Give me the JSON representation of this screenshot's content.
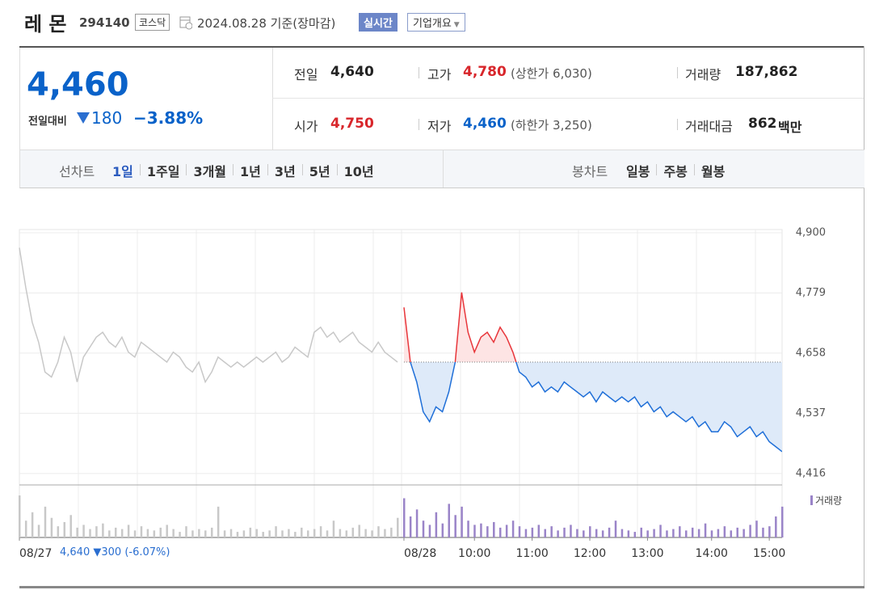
{
  "header": {
    "name": "레 몬",
    "code": "294140",
    "market": "코스닥",
    "date": "2024.08.28",
    "basis": "기준(장마감)",
    "realtime": "실시간",
    "company": "기업개요"
  },
  "price": {
    "current": "4,460",
    "change_label": "전일대비",
    "change": "180",
    "change_rate": "−3.88%"
  },
  "stats": [
    {
      "label": "전일",
      "value": "4,640"
    },
    {
      "label": "고가",
      "value": "4,780",
      "note": "(상한가 6,030)"
    },
    {
      "label": "거래량",
      "value": "187,862"
    },
    {
      "label": "시가",
      "value": "4,750"
    },
    {
      "label": "저가",
      "value": "4,460",
      "note": "(하한가 3,250)"
    },
    {
      "label": "거래대금",
      "value": "862",
      "unit": "백만"
    }
  ],
  "tabs": {
    "line_label": "선차트",
    "line": [
      "1일",
      "1주일",
      "3개월",
      "1년",
      "3년",
      "5년",
      "10년"
    ],
    "candle_label": "봉차트",
    "candle": [
      "일봉",
      "주봉",
      "월봉"
    ]
  },
  "chart_data": {
    "type": "line",
    "series": [
      {
        "color": "#c8c8c8",
        "values": [
          4870,
          4790,
          4720,
          4680,
          4620,
          4610,
          4640,
          4690,
          4660,
          4600,
          4650,
          4670,
          4690,
          4700,
          4680,
          4670,
          4690,
          4660,
          4650,
          4680,
          4670,
          4660,
          4650,
          4640,
          4660,
          4650,
          4630,
          4620,
          4640,
          4600,
          4620,
          4650,
          4640,
          4630,
          4640,
          4630,
          4640,
          4650,
          4640,
          4650,
          4660,
          4640,
          4650,
          4670,
          4660,
          4650,
          4700,
          4710,
          4690,
          4700,
          4680,
          4690,
          4700,
          4680,
          4670,
          4660,
          4680,
          4660,
          4650,
          4640,
          null,
          null,
          null,
          null,
          null,
          null,
          null,
          null,
          null,
          null,
          null,
          null,
          null,
          null,
          null,
          null,
          null,
          null,
          null,
          null,
          null,
          null,
          null,
          null,
          null,
          null,
          null,
          null,
          null,
          null,
          null,
          null,
          null,
          null,
          null,
          null,
          null,
          null,
          null,
          null,
          null,
          null,
          null,
          null,
          null,
          null,
          null,
          null,
          null,
          null,
          null,
          null,
          null,
          null,
          null,
          null,
          null,
          null,
          null,
          null
        ]
      },
      {
        "color": "#1f6fd8",
        "up_color": "#e8363b",
        "values": [
          null,
          null,
          null,
          null,
          null,
          null,
          null,
          null,
          null,
          null,
          null,
          null,
          null,
          null,
          null,
          null,
          null,
          null,
          null,
          null,
          null,
          null,
          null,
          null,
          null,
          null,
          null,
          null,
          null,
          null,
          null,
          null,
          null,
          null,
          null,
          null,
          null,
          null,
          null,
          null,
          null,
          null,
          null,
          null,
          null,
          null,
          null,
          null,
          null,
          null,
          null,
          null,
          null,
          null,
          null,
          null,
          null,
          null,
          null,
          null,
          4750,
          4640,
          4600,
          4540,
          4520,
          4550,
          4540,
          4580,
          4640,
          4780,
          4700,
          4660,
          4690,
          4700,
          4680,
          4710,
          4690,
          4660,
          4620,
          4610,
          4590,
          4600,
          4580,
          4590,
          4580,
          4600,
          4590,
          4580,
          4570,
          4580,
          4560,
          4580,
          4570,
          4560,
          4570,
          4560,
          4570,
          4550,
          4560,
          4540,
          4550,
          4530,
          4540,
          4530,
          4520,
          4530,
          4510,
          4520,
          4500,
          4500,
          4520,
          4510,
          4490,
          4500,
          4510,
          4490,
          4500,
          4480,
          4470,
          4460
        ]
      }
    ],
    "reference_line": 4640,
    "volume": {
      "name": "거래량",
      "color": "#9a84c8",
      "values": [
        30,
        12,
        18,
        9,
        22,
        14,
        8,
        11,
        16,
        7,
        9,
        6,
        8,
        10,
        5,
        7,
        6,
        9,
        5,
        8,
        6,
        5,
        7,
        9,
        6,
        4,
        8,
        5,
        6,
        5,
        7,
        22,
        5,
        6,
        4,
        5,
        7,
        6,
        4,
        5,
        8,
        5,
        6,
        4,
        7,
        5,
        6,
        8,
        5,
        12,
        6,
        5,
        7,
        9,
        6,
        5,
        8,
        6,
        7,
        14,
        28,
        15,
        20,
        12,
        9,
        18,
        10,
        24,
        16,
        22,
        12,
        9,
        10,
        8,
        11,
        7,
        9,
        12,
        8,
        6,
        7,
        9,
        6,
        8,
        5,
        7,
        9,
        6,
        5,
        8,
        6,
        5,
        7,
        12,
        6,
        5,
        4,
        7,
        5,
        6,
        9,
        5,
        6,
        8,
        5,
        7,
        6,
        10,
        5,
        6,
        8,
        5,
        7,
        6,
        9,
        12,
        7,
        8,
        15,
        22
      ]
    },
    "xlim": [
      0,
      119
    ],
    "xticks": [
      {
        "value": 0,
        "label": "08/27"
      },
      {
        "value": 60,
        "label": "08/28"
      },
      {
        "value": 71,
        "label": "10:00"
      },
      {
        "value": 80,
        "label": "11:00"
      },
      {
        "value": 89,
        "label": "12:00"
      },
      {
        "value": 98,
        "label": "13:00"
      },
      {
        "value": 108,
        "label": "14:00"
      },
      {
        "value": 117,
        "label": "15:00"
      }
    ],
    "ylim": [
      4393,
      4900
    ],
    "yticks": [
      {
        "value": 4416,
        "label": "4,416"
      },
      {
        "value": 4537,
        "label": "4,537"
      },
      {
        "value": 4658,
        "label": "4,658"
      },
      {
        "value": 4779,
        "label": "4,779"
      },
      {
        "value": 4900,
        "label": "4,900"
      }
    ],
    "grid": true,
    "footer": {
      "prev_close": "4,640",
      "prev_change": "▼300",
      "prev_rate": "(-6.07%)"
    }
  }
}
